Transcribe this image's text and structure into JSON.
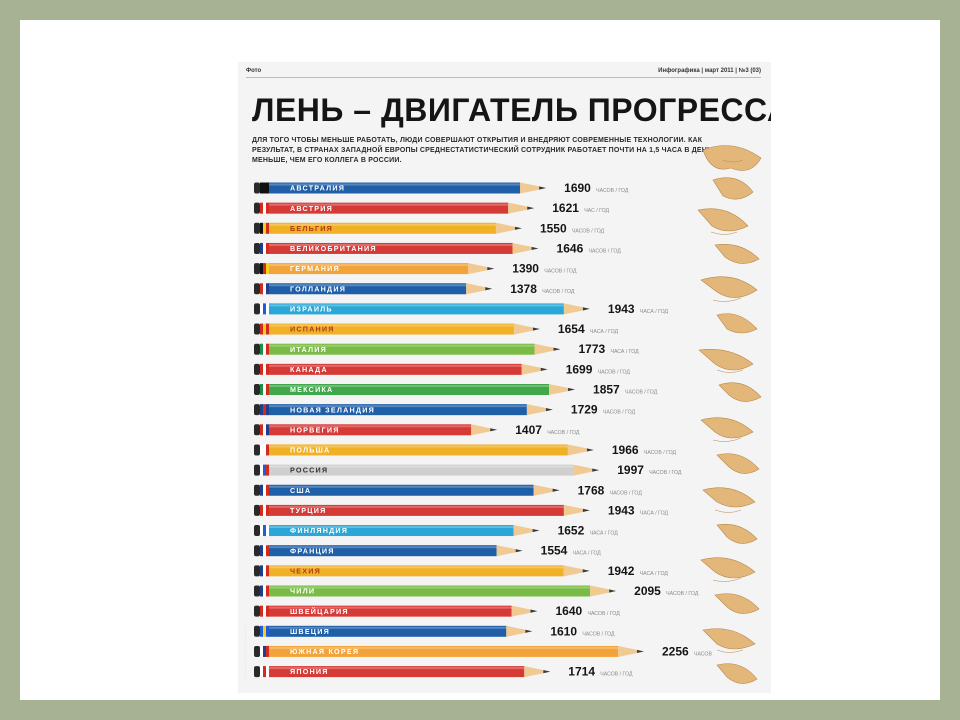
{
  "header": {
    "left": "Фото",
    "right": "Инфографика | март 2011 | №3 (03)"
  },
  "title": "ЛЕНЬ – ДВИГАТЕЛЬ ПРОГРЕССА",
  "subtitle": "ДЛЯ ТОГО ЧТОБЫ МЕНЬШЕ РАБОТАТЬ, ЛЮДИ СОВЕРШАЮТ ОТКРЫТИЯ И ВНЕДРЯЮТ СОВРЕМЕННЫЕ ТЕХНОЛОГИИ. КАК РЕЗУЛЬТАТ, В СТРАНАХ ЗАПАДНОЙ ЕВРОПЫ СРЕДНЕСТАТИСТИЧЕСКИЙ СОТРУДНИК РАБОТАЕТ ПОЧТИ НА 1,5 ЧАСА В ДЕНЬ МЕНЬШЕ, ЧЕМ ЕГО КОЛЛЕГА В РОССИИ.",
  "colors": {
    "background": "#a7b294",
    "page": "#f4f4f4",
    "wood": "#f1c993",
    "graphite": "#3a3a3a"
  },
  "chart_data": {
    "type": "bar",
    "orientation": "horizontal",
    "categories": [
      "АВСТРАЛИЯ",
      "АВСТРИЯ",
      "БЕЛЬГИЯ",
      "ВЕЛИКОБРИТАНИЯ",
      "ГЕРМАНИЯ",
      "ГОЛЛАНДИЯ",
      "ИЗРАИЛЬ",
      "ИСПАНИЯ",
      "ИТАЛИЯ",
      "КАНАДА",
      "МЕКСИКА",
      "НОВАЯ ЗЕЛАНДИЯ",
      "НОРВЕГИЯ",
      "ПОЛЬША",
      "РОССИЯ",
      "США",
      "ТУРЦИЯ",
      "ФИНЛЯНДИЯ",
      "ФРАНЦИЯ",
      "ЧЕХИЯ",
      "ЧИЛИ",
      "ШВЕЙЦАРИЯ",
      "ШВЕЦИЯ",
      "ЮЖНАЯ КОРЕЯ",
      "ЯПОНИЯ"
    ],
    "values": [
      1690,
      1621,
      1550,
      1646,
      1390,
      1378,
      1943,
      1654,
      1773,
      1699,
      1857,
      1729,
      1407,
      1966,
      1997,
      1768,
      1943,
      1652,
      1554,
      1942,
      2095,
      1640,
      1610,
      2256,
      1714
    ],
    "units": [
      "ЧАСОВ / ГОД",
      "ЧАС / ГОД",
      "ЧАСОВ / ГОД",
      "ЧАСОВ / ГОД",
      "ЧАСОВ / ГОД",
      "ЧАСОВ / ГОД",
      "ЧАСА / ГОД",
      "ЧАСА / ГОД",
      "ЧАСА / ГОД",
      "ЧАСОВ / ГОД",
      "ЧАСОВ / ГОД",
      "ЧАСОВ / ГОД",
      "ЧАСОВ / ГОД",
      "ЧАСОВ / ГОД",
      "ЧАСОВ / ГОД",
      "ЧАСОВ / ГОД",
      "ЧАСА / ГОД",
      "ЧАСА / ГОД",
      "ЧАСА / ГОД",
      "ЧАСА / ГОД",
      "ЧАСОВ / ГОД",
      "ЧАСОВ / ГОД",
      "ЧАСОВ / ГОД",
      "ЧАСОВ",
      "ЧАСОВ / ГОД"
    ],
    "pencil_colors": [
      "#1f5fa8",
      "#d63a37",
      "#f0b127",
      "#d63a37",
      "#f2a43a",
      "#1f5fa8",
      "#2aa7d6",
      "#f0b127",
      "#79bb45",
      "#d63a37",
      "#3fa84a",
      "#1f5fa8",
      "#d63a37",
      "#f0b127",
      "#cfcfcf",
      "#1f5fa8",
      "#d63a37",
      "#2aa7d6",
      "#1f5fa8",
      "#f0b127",
      "#79bb45",
      "#d63a37",
      "#1f5fa8",
      "#f2a43a",
      "#d63a37"
    ],
    "label_colors": [
      "#ffffff",
      "#ffffff",
      "#b33b12",
      "#ffffff",
      "#ffffff",
      "#ffffff",
      "#ffffff",
      "#b33b12",
      "#ffffff",
      "#ffffff",
      "#ffffff",
      "#ffffff",
      "#ffffff",
      "#ffffff",
      "#333333",
      "#ffffff",
      "#ffffff",
      "#ffffff",
      "#ffffff",
      "#b33b12",
      "#ffffff",
      "#ffffff",
      "#ffffff",
      "#ffffff",
      "#ffffff"
    ],
    "flags": [
      [
        "#111111",
        "#111111",
        "#111111"
      ],
      [
        "#d52b1e",
        "#ffffff",
        "#d52b1e"
      ],
      [
        "#111111",
        "#f7d117",
        "#d52b1e"
      ],
      [
        "#1f3e8c",
        "#ffffff",
        "#d52b1e"
      ],
      [
        "#111111",
        "#d52b1e",
        "#f7d117"
      ],
      [
        "#d52b1e",
        "#ffffff",
        "#1f3e8c"
      ],
      [
        "#ffffff",
        "#1f5fd6",
        "#ffffff"
      ],
      [
        "#d52b1e",
        "#f7d117",
        "#d52b1e"
      ],
      [
        "#1e8f45",
        "#ffffff",
        "#d52b1e"
      ],
      [
        "#d52b1e",
        "#ffffff",
        "#d52b1e"
      ],
      [
        "#1e8f45",
        "#ffffff",
        "#d52b1e"
      ],
      [
        "#1f3e8c",
        "#d52b1e",
        "#1f3e8c"
      ],
      [
        "#d52b1e",
        "#ffffff",
        "#1f3e8c"
      ],
      [
        "#ffffff",
        "#ffffff",
        "#d52b1e"
      ],
      [
        "#ffffff",
        "#1f5fd6",
        "#d52b1e"
      ],
      [
        "#1f3e8c",
        "#ffffff",
        "#d52b1e"
      ],
      [
        "#d52b1e",
        "#ffffff",
        "#d52b1e"
      ],
      [
        "#ffffff",
        "#1f5fd6",
        "#ffffff"
      ],
      [
        "#1f3e8c",
        "#ffffff",
        "#d52b1e"
      ],
      [
        "#1f3e8c",
        "#ffffff",
        "#d52b1e"
      ],
      [
        "#1f3e8c",
        "#ffffff",
        "#d52b1e"
      ],
      [
        "#d52b1e",
        "#ffffff",
        "#d52b1e"
      ],
      [
        "#1f5fd6",
        "#f7d117",
        "#1f5fd6"
      ],
      [
        "#ffffff",
        "#1f3e8c",
        "#d52b1e"
      ],
      [
        "#ffffff",
        "#d52b1e",
        "#ffffff"
      ]
    ],
    "title": "ЛЕНЬ – ДВИГАТЕЛЬ ПРОГРЕССА",
    "xlabel": "",
    "ylabel": "",
    "grid": false,
    "legend": "none"
  }
}
